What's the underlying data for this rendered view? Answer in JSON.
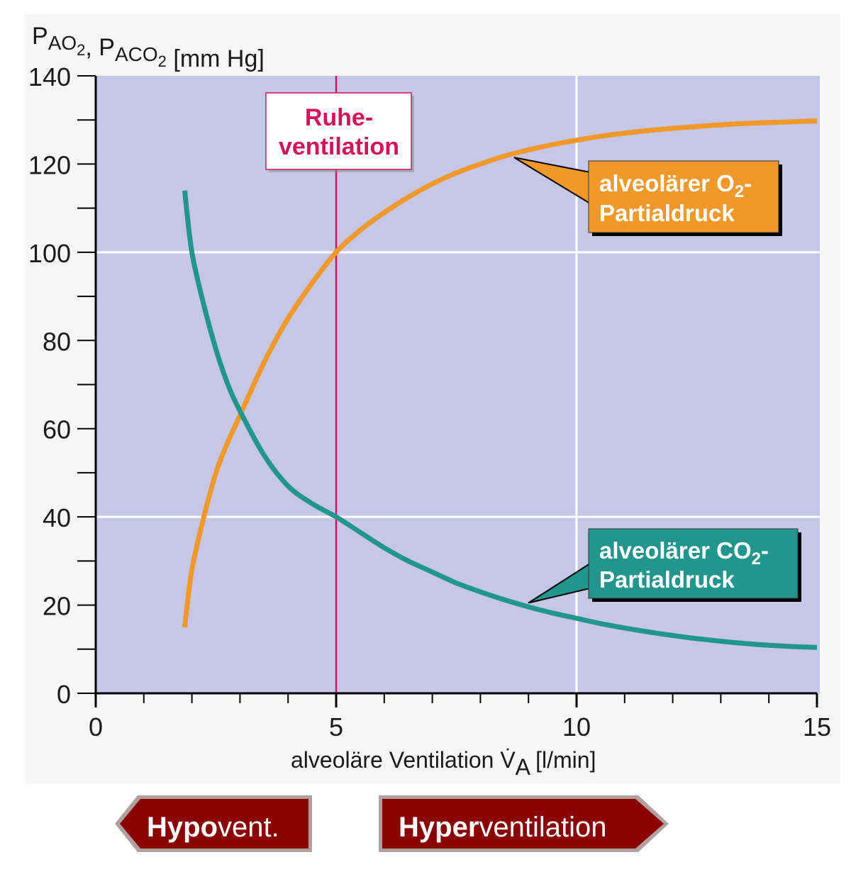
{
  "chart_data": {
    "type": "line",
    "ylabel": {
      "parts": [
        {
          "text": "P",
          "sub": "AO",
          "sub2": "2"
        },
        {
          "text": ", P",
          "sub": "ACO",
          "sub2": "2"
        },
        {
          "text": " [mm Hg]"
        }
      ]
    },
    "xlabel": {
      "pre": "alveoläre Ventilation V̇",
      "sub": "A",
      "post": " [l/min]"
    },
    "xlim": [
      0,
      15
    ],
    "ylim": [
      0,
      140
    ],
    "xticks": [
      0,
      5,
      10,
      15
    ],
    "yticks": [
      0,
      20,
      40,
      60,
      80,
      100,
      120,
      140
    ],
    "grid": true,
    "series": [
      {
        "key": "o2",
        "name": "alveolärer O₂-Partialdruck",
        "color": "#f0982a",
        "x": [
          1.85,
          2.0,
          2.25,
          2.5,
          2.75,
          3.0,
          3.5,
          4.0,
          4.5,
          5.0,
          5.5,
          6.0,
          6.5,
          7.0,
          7.5,
          8.0,
          8.5,
          9.0,
          9.5,
          10.0,
          10.5,
          11.0,
          11.5,
          12.0,
          12.5,
          13.0,
          13.5,
          14.0,
          14.5,
          15.0
        ],
        "y": [
          15,
          28,
          40,
          50,
          57,
          63,
          75,
          85,
          93,
          100,
          105,
          109,
          112.5,
          115.5,
          118,
          120,
          121.8,
          123.2,
          124.4,
          125.4,
          126.3,
          127,
          127.6,
          128.1,
          128.5,
          128.9,
          129.2,
          129.4,
          129.6,
          129.8
        ]
      },
      {
        "key": "co2",
        "name": "alveolärer CO₂-Partialdruck",
        "color": "#22968c",
        "x": [
          1.85,
          2.0,
          2.25,
          2.5,
          2.75,
          3.0,
          3.5,
          4.0,
          4.5,
          5.0,
          5.5,
          6.0,
          6.5,
          7.0,
          7.5,
          8.0,
          8.5,
          9.0,
          9.5,
          10.0,
          10.5,
          11.0,
          11.5,
          12.0,
          12.5,
          13.0,
          13.5,
          14.0,
          14.5,
          15.0
        ],
        "y": [
          114,
          100,
          88,
          78,
          70,
          64,
          54,
          47,
          43,
          40,
          36.5,
          33,
          30,
          27.5,
          25,
          23,
          21.2,
          19.6,
          18.2,
          17,
          15.8,
          14.8,
          13.9,
          13.1,
          12.4,
          11.8,
          11.3,
          10.9,
          10.6,
          10.4
        ]
      }
    ],
    "annotations": {
      "ruhe": {
        "x": 5,
        "lines": [
          "Ruhe-",
          "ventilation"
        ],
        "color": "#d4145a"
      },
      "o2": {
        "line1": "alveolärer O",
        "sub": "2",
        "dash": "-",
        "line2": "Partialdruck",
        "pointer_x": 8.7,
        "pointer_y": 121.5
      },
      "co2": {
        "line1": "alveolärer  CO",
        "sub": "2",
        "dash": "-",
        "line2": "Partialdruck",
        "pointer_x": 9.0,
        "pointer_y": 20.5
      }
    }
  },
  "arrows": {
    "hypo": {
      "bold": "Hypo",
      "rest": "vent."
    },
    "hyper": {
      "bold": "Hyper",
      "rest": "ventilation"
    },
    "fill": "#8b0000"
  }
}
